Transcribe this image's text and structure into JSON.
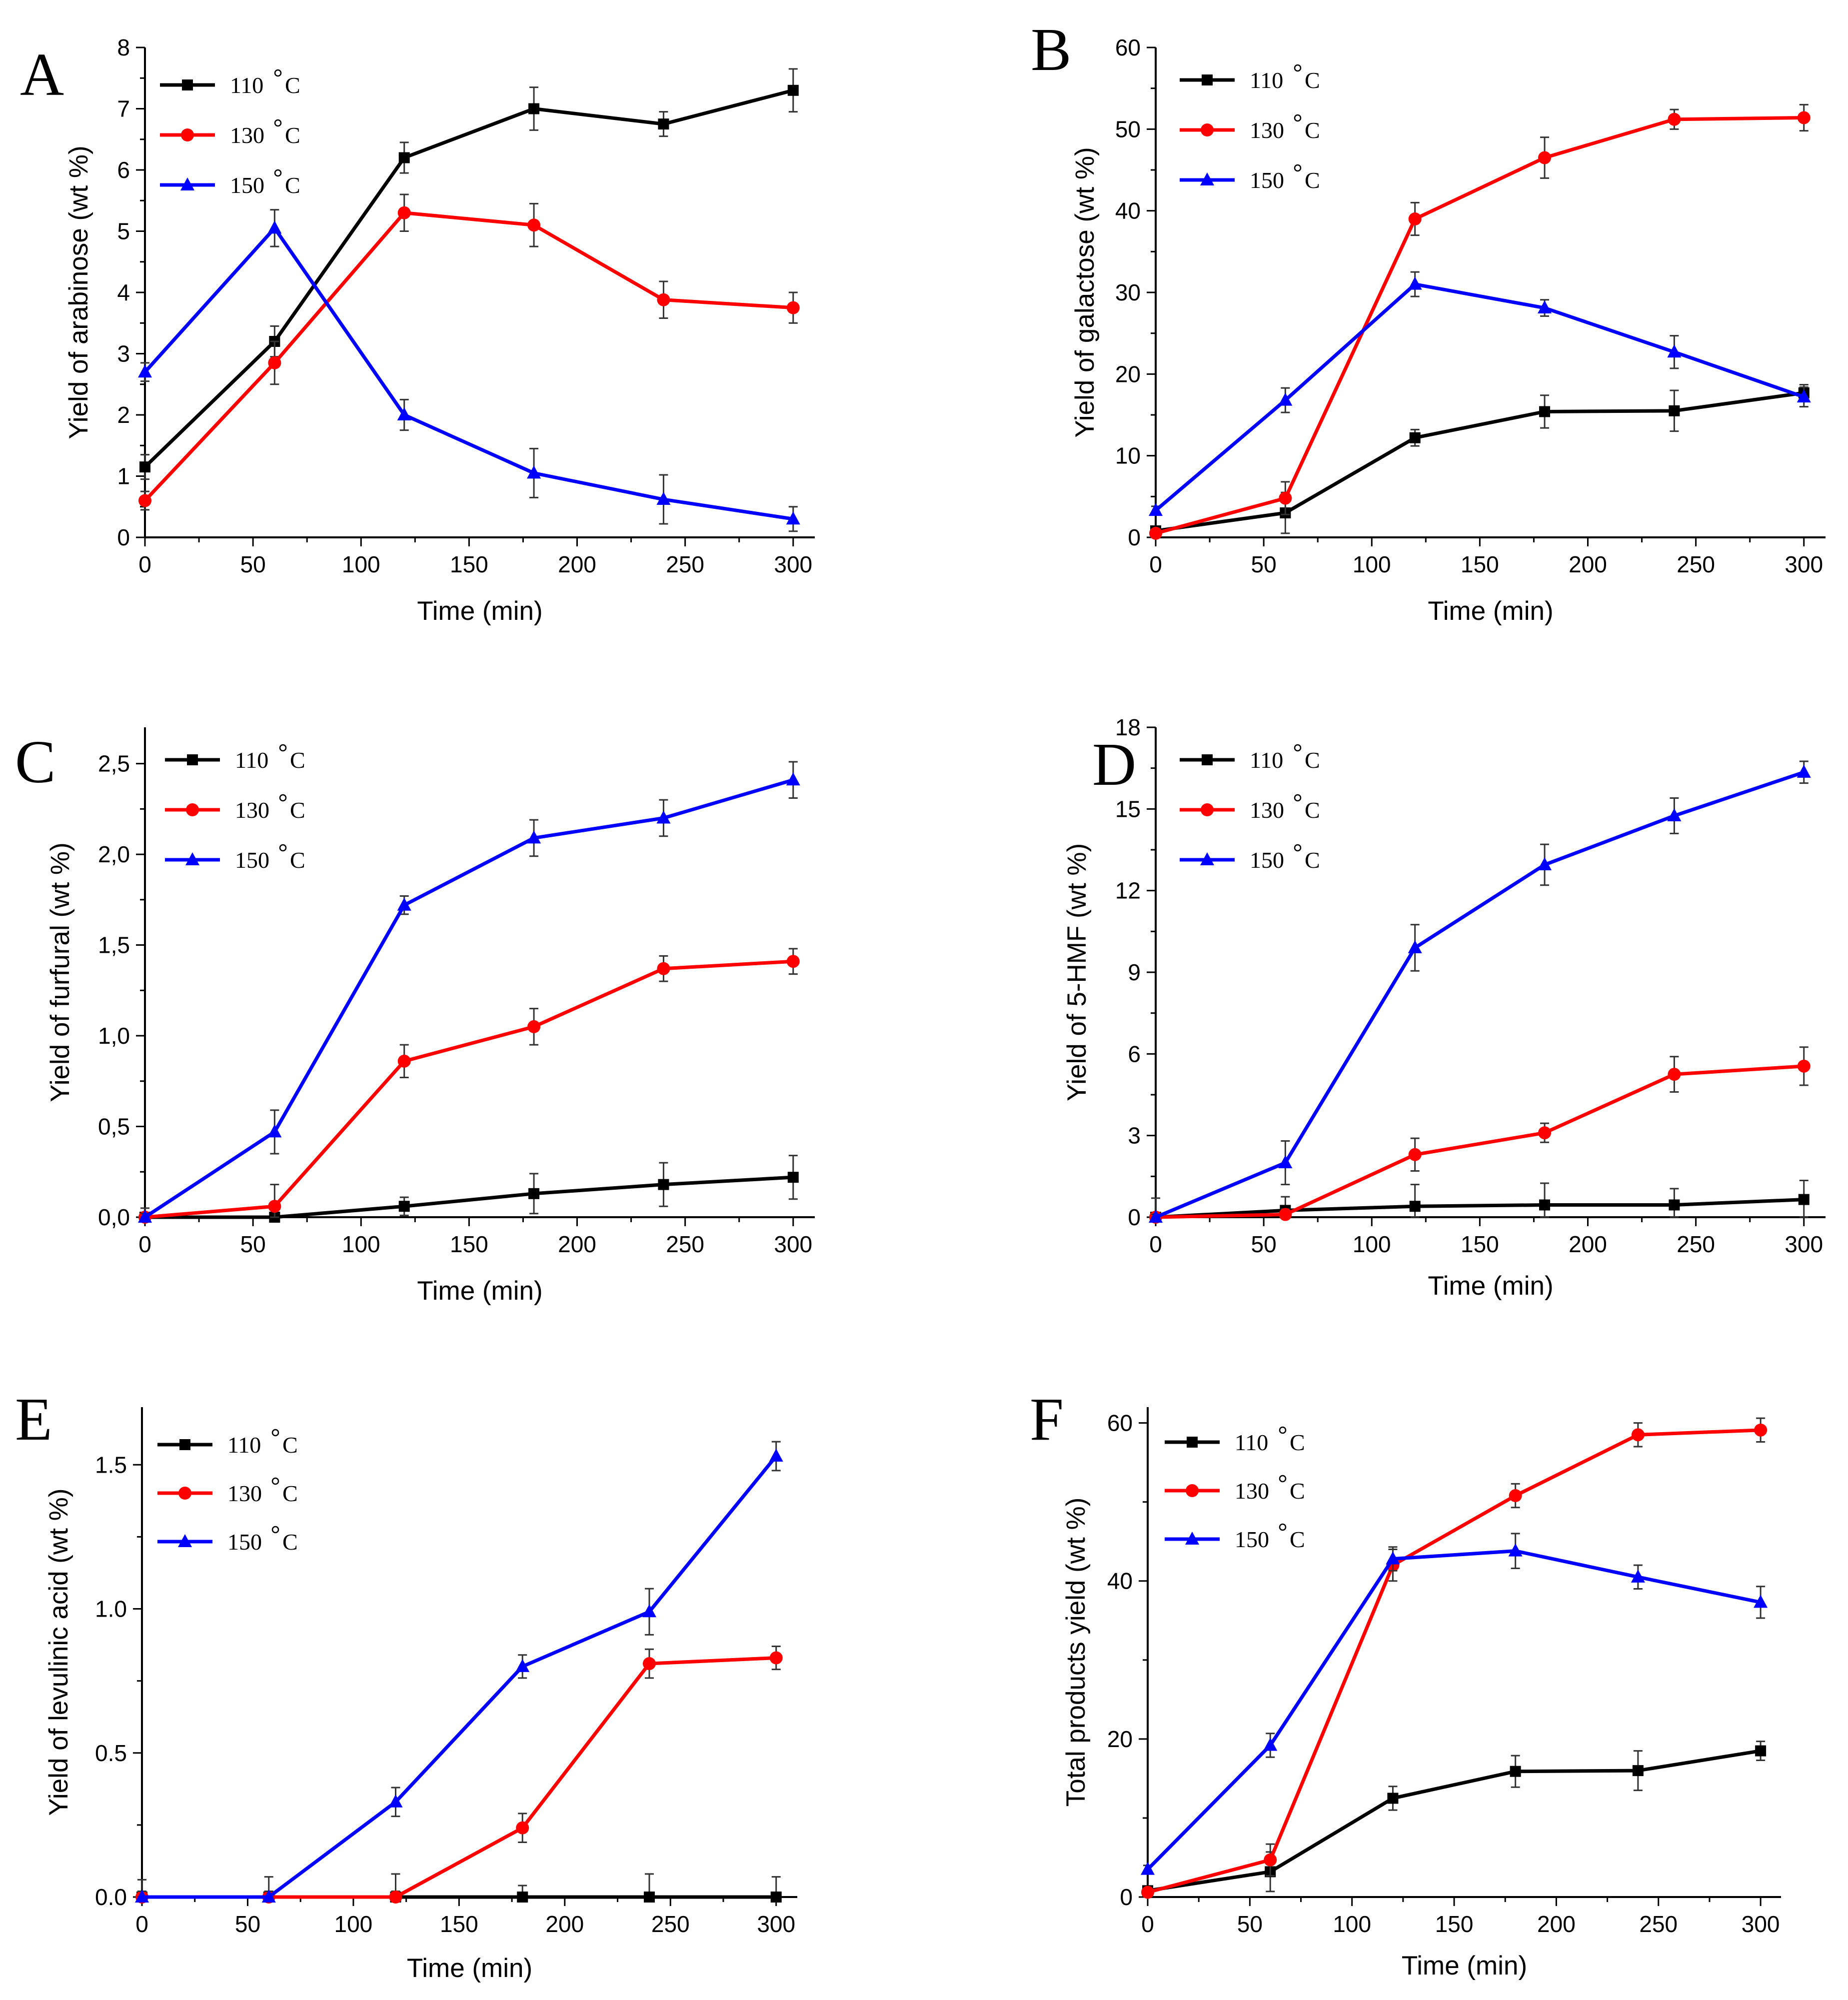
{
  "chart_data": [
    {
      "type": "line",
      "panel_label": "A",
      "xlabel": "Time (min)",
      "ylabel": "Yield of arabinose (wt %)",
      "xlim": [
        0,
        310
      ],
      "ylim": [
        0,
        8
      ],
      "x_ticks": [
        "0",
        "50",
        "100",
        "150",
        "200",
        "250",
        "300"
      ],
      "y_ticks": [
        "0",
        "1",
        "2",
        "3",
        "4",
        "5",
        "6",
        "7",
        "8"
      ],
      "legend_position": "top-left",
      "x": [
        0,
        60,
        120,
        180,
        240,
        300
      ],
      "series": [
        {
          "name": "110 °C",
          "label_text": "110",
          "unit": "C",
          "color": "#000000",
          "marker": "square",
          "values": [
            1.15,
            3.2,
            6.2,
            7.0,
            6.75,
            7.3
          ],
          "errors": [
            0.2,
            0.25,
            0.25,
            0.35,
            0.2,
            0.35
          ]
        },
        {
          "name": "130 °C",
          "label_text": "130",
          "unit": "C",
          "color": "#ff0000",
          "marker": "circle",
          "values": [
            0.6,
            2.85,
            5.3,
            5.1,
            3.88,
            3.75
          ],
          "errors": [
            0.15,
            0.35,
            0.3,
            0.35,
            0.3,
            0.25
          ]
        },
        {
          "name": "150 °C",
          "label_text": "150",
          "unit": "C",
          "color": "#0000ff",
          "marker": "triangle",
          "values": [
            2.7,
            5.05,
            2.0,
            1.05,
            0.62,
            0.3
          ],
          "errors": [
            0.15,
            0.3,
            0.25,
            0.4,
            0.4,
            0.2
          ]
        }
      ]
    },
    {
      "type": "line",
      "panel_label": "B",
      "xlabel": "Time (min)",
      "ylabel": "Yield of galactose (wt %)",
      "xlim": [
        0,
        310
      ],
      "ylim": [
        0,
        60
      ],
      "x_ticks": [
        "0",
        "50",
        "100",
        "150",
        "200",
        "250",
        "300"
      ],
      "y_ticks": [
        "0",
        "10",
        "20",
        "30",
        "40",
        "50",
        "60"
      ],
      "legend_position": "top-left",
      "x": [
        0,
        60,
        120,
        180,
        240,
        300
      ],
      "series": [
        {
          "name": "110 °C",
          "label_text": "110",
          "unit": "C",
          "color": "#000000",
          "marker": "square",
          "values": [
            0.8,
            3.0,
            12.2,
            15.4,
            15.5,
            17.7
          ],
          "errors": [
            0.5,
            2.5,
            1.0,
            2.0,
            2.5,
            1.0
          ]
        },
        {
          "name": "130 °C",
          "label_text": "130",
          "unit": "C",
          "color": "#ff0000",
          "marker": "circle",
          "values": [
            0.5,
            4.8,
            39.0,
            46.5,
            51.2,
            51.4
          ],
          "errors": [
            0.5,
            2.0,
            2.0,
            2.5,
            1.2,
            1.6
          ]
        },
        {
          "name": "150 °C",
          "label_text": "150",
          "unit": "C",
          "color": "#0000ff",
          "marker": "triangle",
          "values": [
            3.3,
            16.8,
            31.0,
            28.1,
            22.7,
            17.2
          ],
          "errors": [
            0.5,
            1.5,
            1.5,
            1.0,
            2.0,
            1.2
          ]
        }
      ]
    },
    {
      "type": "line",
      "panel_label": "C",
      "xlabel": "Time (min)",
      "ylabel": "Yield of furfural (wt %)",
      "xlim": [
        0,
        310
      ],
      "ylim": [
        0,
        2.7
      ],
      "x_ticks": [
        "0",
        "50",
        "100",
        "150",
        "200",
        "250",
        "300"
      ],
      "y_ticks": [
        "0,0",
        "0,5",
        "1,0",
        "1,5",
        "2,0",
        "2,5"
      ],
      "legend_position": "top-left",
      "x": [
        0,
        60,
        120,
        180,
        240,
        300
      ],
      "series": [
        {
          "name": "110 °C",
          "label_text": "110",
          "unit": "C",
          "color": "#000000",
          "marker": "square",
          "values": [
            0.0,
            0.0,
            0.06,
            0.13,
            0.18,
            0.22
          ],
          "errors": [
            0.05,
            0.05,
            0.05,
            0.11,
            0.12,
            0.12
          ]
        },
        {
          "name": "130 °C",
          "label_text": "130",
          "unit": "C",
          "color": "#ff0000",
          "marker": "circle",
          "values": [
            0.0,
            0.06,
            0.86,
            1.05,
            1.37,
            1.41
          ],
          "errors": [
            0.02,
            0.12,
            0.09,
            0.1,
            0.07,
            0.07
          ]
        },
        {
          "name": "150 °C",
          "label_text": "150",
          "unit": "C",
          "color": "#0000ff",
          "marker": "triangle",
          "values": [
            0.0,
            0.47,
            1.72,
            2.09,
            2.2,
            2.41
          ],
          "errors": [
            0.02,
            0.12,
            0.05,
            0.1,
            0.1,
            0.1
          ]
        }
      ]
    },
    {
      "type": "line",
      "panel_label": "D",
      "xlabel": "Time (min)",
      "ylabel": "Yield of 5-HMF (wt %)",
      "xlim": [
        0,
        310
      ],
      "ylim": [
        0,
        18
      ],
      "x_ticks": [
        "0",
        "50",
        "100",
        "150",
        "200",
        "250",
        "300"
      ],
      "y_ticks": [
        "0",
        "3",
        "6",
        "9",
        "12",
        "15",
        "18"
      ],
      "legend_position": "top-left",
      "x": [
        0,
        60,
        120,
        180,
        240,
        300
      ],
      "series": [
        {
          "name": "110 °C",
          "label_text": "110",
          "unit": "C",
          "color": "#000000",
          "marker": "square",
          "values": [
            0.0,
            0.25,
            0.4,
            0.45,
            0.45,
            0.65
          ],
          "errors": [
            0.7,
            0.5,
            0.8,
            0.8,
            0.6,
            0.7
          ]
        },
        {
          "name": "130 °C",
          "label_text": "130",
          "unit": "C",
          "color": "#ff0000",
          "marker": "circle",
          "values": [
            0.0,
            0.1,
            2.3,
            3.1,
            5.25,
            5.55
          ],
          "errors": [
            0.1,
            0.2,
            0.6,
            0.35,
            0.65,
            0.7
          ]
        },
        {
          "name": "150 °C",
          "label_text": "150",
          "unit": "C",
          "color": "#0000ff",
          "marker": "triangle",
          "values": [
            0.0,
            2.0,
            9.9,
            12.95,
            14.75,
            16.35
          ],
          "errors": [
            0.1,
            0.8,
            0.85,
            0.75,
            0.65,
            0.4
          ]
        }
      ]
    },
    {
      "type": "line",
      "panel_label": "E",
      "xlabel": "Time (min)",
      "ylabel": "Yield of levulinic acid (wt %)",
      "xlim": [
        0,
        310
      ],
      "ylim": [
        0,
        1.7
      ],
      "x_ticks": [
        "0",
        "50",
        "100",
        "150",
        "200",
        "250",
        "300"
      ],
      "y_ticks": [
        "0.0",
        "0.5",
        "1.0",
        "1.5"
      ],
      "legend_position": "top-left",
      "x": [
        0,
        60,
        120,
        180,
        240,
        300
      ],
      "series": [
        {
          "name": "110 °C",
          "label_text": "110",
          "unit": "C",
          "color": "#000000",
          "marker": "square",
          "values": [
            0.0,
            0.0,
            0.0,
            0.0,
            0.0,
            0.0
          ],
          "errors": [
            0.06,
            0.07,
            0.08,
            0.04,
            0.08,
            0.07
          ]
        },
        {
          "name": "130 °C",
          "label_text": "130",
          "unit": "C",
          "color": "#ff0000",
          "marker": "circle",
          "values": [
            0.0,
            0.0,
            0.0,
            0.24,
            0.81,
            0.83
          ],
          "errors": [
            0.02,
            0.02,
            0.02,
            0.05,
            0.05,
            0.04
          ]
        },
        {
          "name": "150 °C",
          "label_text": "150",
          "unit": "C",
          "color": "#0000ff",
          "marker": "triangle",
          "values": [
            0.0,
            0.0,
            0.33,
            0.8,
            0.99,
            1.53
          ],
          "errors": [
            0.02,
            0.02,
            0.05,
            0.04,
            0.08,
            0.05
          ]
        }
      ]
    },
    {
      "type": "line",
      "panel_label": "F",
      "xlabel": "Time (min)",
      "ylabel": "Total products yield (wt %)",
      "xlim": [
        0,
        310
      ],
      "ylim": [
        0,
        62
      ],
      "x_ticks": [
        "0",
        "50",
        "100",
        "150",
        "200",
        "250",
        "300"
      ],
      "y_ticks": [
        "0",
        "20",
        "40",
        "60"
      ],
      "legend_position": "top-left",
      "x": [
        0,
        60,
        120,
        180,
        240,
        300
      ],
      "series": [
        {
          "name": "110 °C",
          "label_text": "110",
          "unit": "C",
          "color": "#000000",
          "marker": "square",
          "values": [
            0.8,
            3.2,
            12.5,
            15.9,
            16.0,
            18.5
          ],
          "errors": [
            0.5,
            2.5,
            1.5,
            2.0,
            2.5,
            1.2
          ]
        },
        {
          "name": "130 °C",
          "label_text": "130",
          "unit": "C",
          "color": "#ff0000",
          "marker": "circle",
          "values": [
            0.6,
            4.7,
            42.0,
            50.8,
            58.5,
            59.1
          ],
          "errors": [
            0.5,
            2.0,
            2.0,
            1.5,
            1.5,
            1.5
          ]
        },
        {
          "name": "150 °C",
          "label_text": "150",
          "unit": "C",
          "color": "#0000ff",
          "marker": "triangle",
          "values": [
            3.5,
            19.2,
            42.8,
            43.8,
            40.5,
            37.3
          ],
          "errors": [
            0.5,
            1.5,
            1.5,
            2.2,
            1.5,
            2.0
          ]
        }
      ]
    }
  ]
}
